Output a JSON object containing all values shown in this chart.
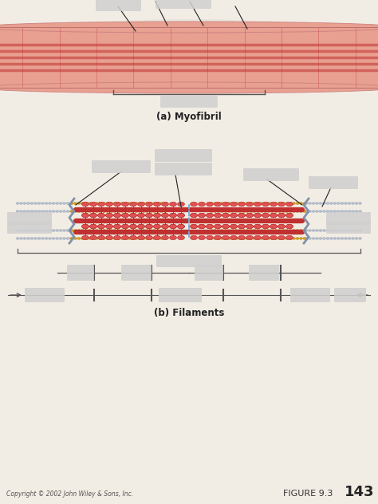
{
  "bg_color": "#f2ede4",
  "title_a": "(a) Myofibril",
  "title_b": "(b) Filaments",
  "footer_left": "Copyright © 2002 John Wiley & Sons, Inc.",
  "footer_right": "FIGURE 9.3",
  "footer_num": "143",
  "myofibril_color_light": "#e8a090",
  "myofibril_color_dark": "#c03030",
  "myofibril_color_end": "#e8c0b0",
  "myofibril_stripe": "#d06060",
  "actin_color": "#d4a020",
  "actin_edge": "#a07010",
  "myosin_color": "#c03030",
  "myosin_head": "#e05050",
  "titin_color": "#b8c0d0",
  "titin_edge": "#8090a8",
  "label_box_color": "#d0d0d0",
  "zline_color": "#8090a8",
  "mline_color": "#70b0d8",
  "bracket_color": "#555555",
  "anno_color": "#222222",
  "fig_w": 474,
  "fig_h": 632
}
